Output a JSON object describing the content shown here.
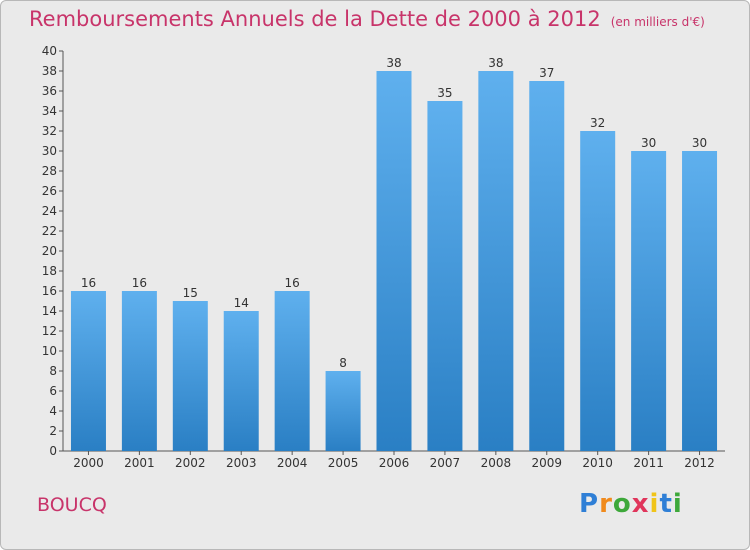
{
  "title": "Remboursements Annuels de la Dette de 2000 à 2012",
  "unit": "(en milliers d'€)",
  "place": "BOUCQ",
  "logo": {
    "letters": [
      "P",
      "r",
      "o",
      "x",
      "i",
      "t",
      "i"
    ],
    "colors": [
      "#2f7fd6",
      "#f08a1c",
      "#3da83a",
      "#e0355b",
      "#f0c419",
      "#2f7fd6",
      "#3da83a"
    ]
  },
  "colors": {
    "bar_top": "#5fb0ee",
    "bar_bottom": "#2a7fc4",
    "title": "#c8346a"
  },
  "chart_data": {
    "type": "bar",
    "categories": [
      "2000",
      "2001",
      "2002",
      "2003",
      "2004",
      "2005",
      "2006",
      "2007",
      "2008",
      "2009",
      "2010",
      "2011",
      "2012"
    ],
    "values": [
      16,
      16,
      15,
      14,
      16,
      8,
      38,
      35,
      38,
      37,
      32,
      30,
      30
    ],
    "ylim": [
      0,
      40
    ],
    "ytick_step": 2,
    "grid": false,
    "data_labels": true
  }
}
